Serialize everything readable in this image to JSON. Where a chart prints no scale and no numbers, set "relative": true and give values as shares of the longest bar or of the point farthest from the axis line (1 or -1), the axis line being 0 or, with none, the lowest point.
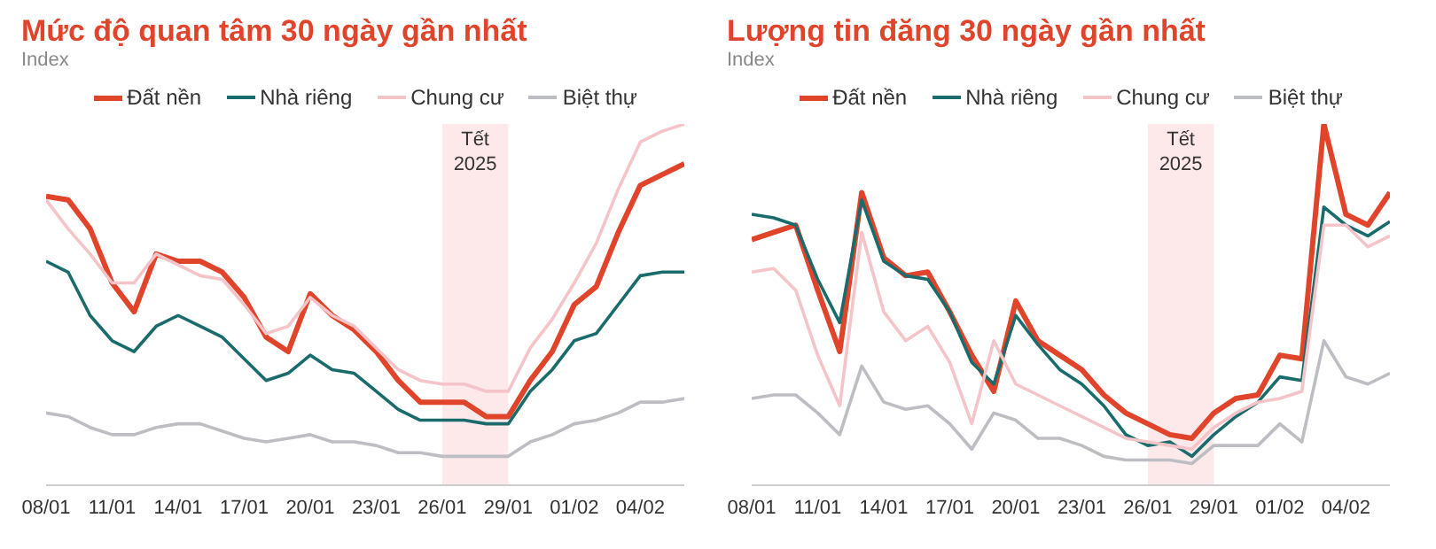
{
  "chart_data": [
    {
      "type": "line",
      "title": "Mức độ quan tâm 30 ngày gần nhất",
      "ylabel": "Index",
      "relative": true,
      "legend": "top",
      "marker": "none",
      "categories": [
        "08/01",
        null,
        null,
        "11/01",
        null,
        null,
        "14/01",
        null,
        null,
        "17/01",
        null,
        null,
        "20/01",
        null,
        null,
        "23/01",
        null,
        null,
        "26/01",
        null,
        null,
        "29/01",
        null,
        null,
        "01/02",
        null,
        null,
        "04/02",
        null,
        null
      ],
      "bands": [
        {
          "axis": "x",
          "from": "26/01",
          "to": "29/01",
          "label": "Tết 2025",
          "color": "#fde8ea"
        }
      ],
      "series": [
        {
          "name": "Đất nền",
          "color": "#e0452c",
          "values": [
            0.8,
            0.79,
            0.71,
            0.56,
            0.48,
            0.64,
            0.62,
            0.62,
            0.59,
            0.52,
            0.41,
            0.37,
            0.53,
            0.47,
            0.43,
            0.37,
            0.29,
            0.23,
            0.23,
            0.23,
            0.19,
            0.19,
            0.29,
            0.37,
            0.5,
            0.55,
            0.7,
            0.83,
            0.86,
            0.89
          ]
        },
        {
          "name": "Nhà riêng",
          "color": "#1a6b6b",
          "values": [
            0.62,
            0.59,
            0.47,
            0.4,
            0.37,
            0.44,
            0.47,
            0.44,
            0.41,
            0.35,
            0.29,
            0.31,
            0.36,
            0.32,
            0.31,
            0.26,
            0.21,
            0.18,
            0.18,
            0.18,
            0.17,
            0.17,
            0.26,
            0.32,
            0.4,
            0.42,
            0.5,
            0.58,
            0.59,
            0.59
          ]
        },
        {
          "name": "Chung cư",
          "color": "#f4c4c8",
          "values": [
            0.79,
            0.71,
            0.64,
            0.56,
            0.56,
            0.64,
            0.61,
            0.58,
            0.57,
            0.5,
            0.42,
            0.44,
            0.52,
            0.47,
            0.44,
            0.38,
            0.32,
            0.29,
            0.28,
            0.28,
            0.26,
            0.26,
            0.38,
            0.46,
            0.56,
            0.67,
            0.82,
            0.95,
            0.98,
            1
          ]
        },
        {
          "name": "Biệt thự",
          "color": "#bdbdc4",
          "values": [
            0.2,
            0.19,
            0.16,
            0.14,
            0.14,
            0.16,
            0.17,
            0.17,
            0.15,
            0.13,
            0.12,
            0.13,
            0.14,
            0.12,
            0.12,
            0.11,
            0.09,
            0.09,
            0.08,
            0.08,
            0.08,
            0.08,
            0.12,
            0.14,
            0.17,
            0.18,
            0.2,
            0.23,
            0.23,
            0.24
          ]
        }
      ]
    },
    {
      "type": "line",
      "title": "Lượng tin đăng 30 ngày gần nhất",
      "ylabel": "Index",
      "relative": true,
      "legend": "top",
      "marker": "none",
      "categories": [
        "08/01",
        null,
        null,
        "11/01",
        null,
        null,
        "14/01",
        null,
        null,
        "17/01",
        null,
        null,
        "20/01",
        null,
        null,
        "23/01",
        null,
        null,
        "26/01",
        null,
        null,
        "29/01",
        null,
        null,
        "01/02",
        null,
        null,
        "04/02",
        null,
        null
      ],
      "bands": [
        {
          "axis": "x",
          "from": "26/01",
          "to": "29/01",
          "label": "Tết 2025",
          "color": "#fde8ea"
        }
      ],
      "series": [
        {
          "name": "Đất nền",
          "color": "#e0452c",
          "values": [
            0.68,
            0.7,
            0.72,
            0.54,
            0.37,
            0.81,
            0.63,
            0.58,
            0.59,
            0.48,
            0.36,
            0.26,
            0.51,
            0.4,
            0.36,
            0.32,
            0.25,
            0.2,
            0.17,
            0.14,
            0.13,
            0.2,
            0.24,
            0.25,
            0.36,
            0.35,
            1,
            0.75,
            0.72,
            0.81
          ]
        },
        {
          "name": "Nhà riêng",
          "color": "#1a6b6b",
          "values": [
            0.75,
            0.74,
            0.72,
            0.57,
            0.45,
            0.79,
            0.62,
            0.58,
            0.57,
            0.48,
            0.34,
            0.28,
            0.47,
            0.39,
            0.32,
            0.28,
            0.22,
            0.14,
            0.11,
            0.12,
            0.08,
            0.14,
            0.19,
            0.23,
            0.3,
            0.29,
            0.77,
            0.72,
            0.69,
            0.73
          ]
        },
        {
          "name": "Chung cư",
          "color": "#f4c4c8",
          "values": [
            0.59,
            0.6,
            0.54,
            0.36,
            0.22,
            0.7,
            0.48,
            0.4,
            0.44,
            0.34,
            0.17,
            0.4,
            0.28,
            0.25,
            0.22,
            0.19,
            0.16,
            0.13,
            0.12,
            0.11,
            0.1,
            0.16,
            0.2,
            0.23,
            0.24,
            0.26,
            0.72,
            0.72,
            0.66,
            0.69
          ]
        },
        {
          "name": "Biệt thự",
          "color": "#bdbdc4",
          "values": [
            0.24,
            0.25,
            0.25,
            0.2,
            0.14,
            0.33,
            0.23,
            0.21,
            0.22,
            0.17,
            0.1,
            0.2,
            0.18,
            0.13,
            0.13,
            0.11,
            0.08,
            0.07,
            0.07,
            0.07,
            0.06,
            0.11,
            0.11,
            0.11,
            0.17,
            0.12,
            0.4,
            0.3,
            0.28,
            0.31
          ]
        }
      ]
    }
  ]
}
